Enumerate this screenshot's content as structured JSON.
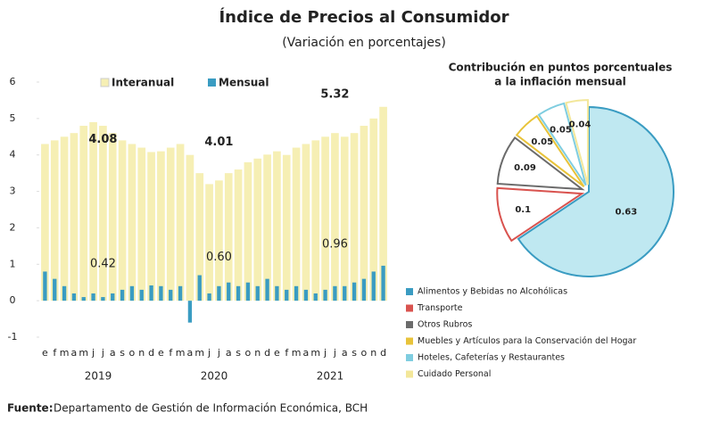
{
  "title": "Índice de Precios al Consumidor",
  "subtitle": "(Variación en porcentajes)",
  "source_label": "Fuente:",
  "source_text": "Departamento de Gestión de Información Económica, BCH",
  "chart_data": [
    {
      "type": "bar",
      "categories": [
        "e",
        "f",
        "m",
        "a",
        "m",
        "j",
        "j",
        "a",
        "s",
        "o",
        "n",
        "d",
        "e",
        "f",
        "m",
        "a",
        "m",
        "j",
        "j",
        "a",
        "s",
        "o",
        "n",
        "d",
        "e",
        "f",
        "m",
        "a",
        "m",
        "j",
        "j",
        "a",
        "s",
        "o",
        "n",
        "d"
      ],
      "x_groups": [
        "2019",
        "2020",
        "2021"
      ],
      "ylim": [
        -1,
        6
      ],
      "yticks": [
        -1,
        0,
        1,
        2,
        3,
        4,
        5,
        6
      ],
      "series": [
        {
          "name": "Interanual",
          "color": "#f6efb4",
          "values": [
            4.3,
            4.4,
            4.5,
            4.6,
            4.8,
            4.9,
            4.8,
            4.6,
            4.4,
            4.3,
            4.2,
            4.08,
            4.1,
            4.2,
            4.3,
            4.0,
            3.5,
            3.2,
            3.3,
            3.5,
            3.6,
            3.8,
            3.9,
            4.01,
            4.1,
            4.0,
            4.2,
            4.3,
            4.4,
            4.5,
            4.6,
            4.5,
            4.6,
            4.8,
            5.0,
            5.32
          ],
          "value_labels": [
            null,
            null,
            null,
            null,
            null,
            null,
            null,
            null,
            null,
            null,
            null,
            "4.08",
            null,
            null,
            null,
            null,
            null,
            null,
            null,
            null,
            null,
            null,
            null,
            "4.01",
            null,
            null,
            null,
            null,
            null,
            null,
            null,
            null,
            null,
            null,
            null,
            "5.32"
          ]
        },
        {
          "name": "Mensual",
          "color": "#3a9cc2",
          "values": [
            0.8,
            0.6,
            0.4,
            0.2,
            0.1,
            0.2,
            0.1,
            0.2,
            0.3,
            0.4,
            0.3,
            0.42,
            0.4,
            0.3,
            0.4,
            -0.6,
            0.7,
            0.2,
            0.4,
            0.5,
            0.4,
            0.5,
            0.4,
            0.6,
            0.4,
            0.3,
            0.4,
            0.3,
            0.2,
            0.3,
            0.4,
            0.4,
            0.5,
            0.6,
            0.8,
            0.96
          ],
          "value_labels": [
            null,
            null,
            null,
            null,
            null,
            null,
            null,
            null,
            null,
            null,
            null,
            "0.42",
            null,
            null,
            null,
            null,
            null,
            null,
            null,
            null,
            null,
            null,
            null,
            "0.60",
            null,
            null,
            null,
            null,
            null,
            null,
            null,
            null,
            null,
            null,
            null,
            "0.96"
          ]
        }
      ]
    },
    {
      "type": "pie",
      "title": [
        "Contribución en puntos porcentuales",
        "a la inflación mensual"
      ],
      "categories": [
        "Alimentos y Bebidas no Alcohólicas",
        "Transporte",
        "Otros Rubros",
        "Muebles y Artículos para la Conservación del Hogar",
        "Hoteles, Cafeterías y Restaurantes",
        "Cuidado Personal"
      ],
      "values": [
        0.63,
        0.1,
        0.09,
        0.05,
        0.05,
        0.04
      ],
      "colors": [
        "#3a9cc2",
        "#d9534f",
        "#6b6b6b",
        "#e8c33a",
        "#7fcde0",
        "#f3e79a"
      ]
    }
  ]
}
